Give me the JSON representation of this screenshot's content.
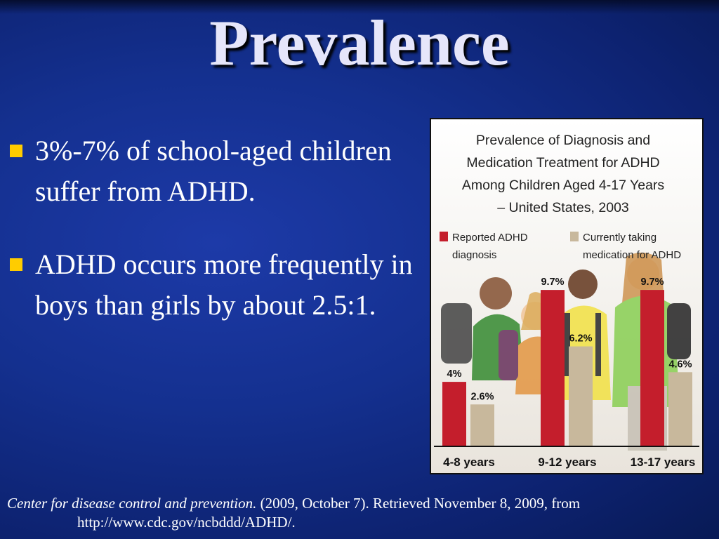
{
  "slide": {
    "title": "Prevalence",
    "bullets": [
      "3%-7% of school-aged children suffer from ADHD.",
      "ADHD occurs more frequently in boys than girls by about 2.5:1."
    ],
    "citation": {
      "italic": "Center for disease control and prevention.",
      "rest": " (2009, October 7). Retrieved November 8, 2009, from",
      "url": "http://www.cdc.gov/ncbddd/ADHD/."
    }
  },
  "colors": {
    "background": "#14308f",
    "bullet_marker": "#ffcc00",
    "series_diagnosis": "#c41e2c",
    "series_medication": "#c8b89c"
  },
  "chart_data": {
    "type": "bar",
    "title_lines": [
      "Prevalence of Diagnosis and",
      "Medication Treatment for ADHD",
      "Among Children Aged 4-17 Years",
      "– United States, 2003"
    ],
    "categories": [
      "4-8 years",
      "9-12 years",
      "13-17 years"
    ],
    "series": [
      {
        "name_lines": [
          "Reported ADHD",
          "diagnosis"
        ],
        "color": "#c41e2c",
        "values": [
          4,
          9.7,
          9.7
        ],
        "labels": [
          "4%",
          "9.7%",
          "9.7%"
        ]
      },
      {
        "name_lines": [
          "Currently taking",
          "medication for ADHD"
        ],
        "color": "#c8b89c",
        "values": [
          2.6,
          6.2,
          4.6
        ],
        "labels": [
          "2.6%",
          "6.2%",
          "4.6%"
        ]
      }
    ],
    "ylim": [
      0,
      12
    ],
    "legend_position": "top",
    "background_photo": "group of smiling children with backpacks"
  }
}
